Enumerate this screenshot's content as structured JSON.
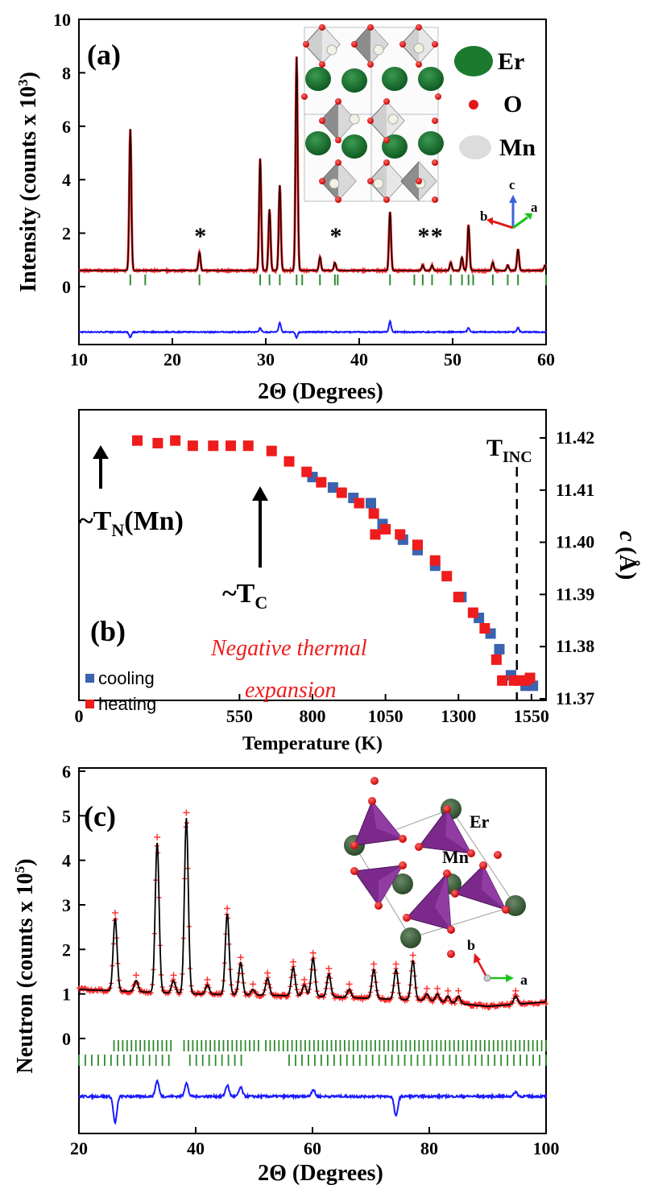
{
  "panels": {
    "a": {
      "tag": "(a)",
      "ylabel": "Intensity (counts x 10",
      "ylabel_sup": "3",
      "ylabel_close": ")",
      "xlabel": "2Θ  (Degrees)",
      "legend": [
        {
          "label": "Er",
          "color": "#1b7a2e"
        },
        {
          "label": "O",
          "color": "#e01818"
        },
        {
          "label": "Mn",
          "color": "#d8d8d8"
        }
      ],
      "impurity_mark": "*",
      "axis_tags": {
        "c": "c",
        "a": "a",
        "b": "b"
      }
    },
    "b": {
      "tag": "(b)",
      "xlabel": "Temperature  (K)",
      "ylabel_c": "c",
      "ylabel_unit": "(Å)",
      "annotations": {
        "tn_prefix": "~T",
        "tn_sub": "N",
        "tn_suffix": "(Mn)",
        "tc_prefix": "~T",
        "tc_sub": "C",
        "tinc_main": "T",
        "tinc_sub": "INC",
        "nte_line1": "Negative thermal",
        "nte_line2": "expansion"
      },
      "legend": [
        {
          "label": "cooling",
          "color": "#3a63b0"
        },
        {
          "label": "heating",
          "color": "#ee1c1c"
        }
      ]
    },
    "c": {
      "tag": "(c)",
      "ylabel": "Neutron (counts x 10",
      "ylabel_sup": "5",
      "ylabel_close": ")",
      "xlabel": "2Θ  (Degrees)",
      "structure_labels": {
        "er": "Er",
        "mn": "Mn",
        "b": "b",
        "a": "a"
      }
    }
  },
  "colors": {
    "observed": "#ff2a2a",
    "calculated": "#000000",
    "difference": "#1a1aff",
    "bragg": "#2e8b2e",
    "cooling": "#3a63b0",
    "heating": "#ee1c1c"
  },
  "chart_data": [
    {
      "type": "line",
      "panel": "a",
      "title": "",
      "xlabel": "2Θ  (Degrees)",
      "ylabel": "Intensity (counts x 10^3)",
      "xlim": [
        10,
        60
      ],
      "ylim": [
        -2.1,
        10
      ],
      "x_ticks": [
        10,
        20,
        30,
        40,
        50,
        60
      ],
      "y_ticks": [
        0,
        2,
        4,
        6,
        8,
        10
      ],
      "background": 0.6,
      "difference_offset": -1.7,
      "peaks": [
        {
          "x": 15.5,
          "y": 5.9
        },
        {
          "x": 22.9,
          "y": 1.3
        },
        {
          "x": 29.4,
          "y": 4.8
        },
        {
          "x": 30.4,
          "y": 2.9
        },
        {
          "x": 31.5,
          "y": 3.8
        },
        {
          "x": 33.3,
          "y": 8.6
        },
        {
          "x": 35.8,
          "y": 1.1
        },
        {
          "x": 37.4,
          "y": 0.9
        },
        {
          "x": 43.3,
          "y": 2.8
        },
        {
          "x": 46.8,
          "y": 0.8
        },
        {
          "x": 47.8,
          "y": 0.8
        },
        {
          "x": 49.8,
          "y": 0.9
        },
        {
          "x": 51.0,
          "y": 1.1
        },
        {
          "x": 51.7,
          "y": 2.3
        },
        {
          "x": 54.3,
          "y": 0.9
        },
        {
          "x": 55.9,
          "y": 0.8
        },
        {
          "x": 57.0,
          "y": 1.4
        },
        {
          "x": 59.9,
          "y": 0.8
        }
      ],
      "difference_features": [
        {
          "x": 15.5,
          "d": -0.2
        },
        {
          "x": 29.4,
          "d": 0.15
        },
        {
          "x": 31.5,
          "d": 0.35
        },
        {
          "x": 33.3,
          "d": -0.2
        },
        {
          "x": 43.3,
          "d": 0.4
        },
        {
          "x": 51.7,
          "d": 0.15
        },
        {
          "x": 57.0,
          "d": 0.15
        }
      ],
      "bragg_positions": [
        15.5,
        17.1,
        22.9,
        29.4,
        30.4,
        31.5,
        33.3,
        33.9,
        35.8,
        37.4,
        37.7,
        43.3,
        45.9,
        46.8,
        47.8,
        49.8,
        51.0,
        51.7,
        52.2,
        54.3,
        55.9,
        57.0,
        60.0
      ],
      "impurity_x": [
        23.0,
        37.5,
        46.9,
        48.3
      ],
      "series": [
        {
          "name": "",
          "role": "observed"
        },
        {
          "name": "",
          "role": "calculated"
        },
        {
          "name": "",
          "role": "difference"
        }
      ]
    },
    {
      "type": "scatter",
      "panel": "b",
      "xlabel": "Temperature  (K)",
      "ylabel": "c (Å)",
      "xlim": [
        0,
        1600
      ],
      "ylim": [
        11.37,
        11.425
      ],
      "x_ticks": [
        0,
        550,
        800,
        1050,
        1300,
        1550
      ],
      "y_ticks": [
        11.37,
        11.38,
        11.39,
        11.4,
        11.41,
        11.42
      ],
      "legend": "bottom-left",
      "tinc_x": 1500,
      "series": [
        {
          "name": "cooling",
          "x": [
            800,
            870,
            940,
            1000,
            1040,
            1110,
            1160,
            1220,
            1310,
            1370,
            1410,
            1440,
            1480,
            1530,
            1555
          ],
          "y": [
            11.4125,
            11.4105,
            11.4085,
            11.4075,
            11.4035,
            11.4005,
            11.3985,
            11.3955,
            11.3895,
            11.3855,
            11.3825,
            11.3795,
            11.3745,
            11.3725,
            11.3725
          ]
        },
        {
          "name": "heating",
          "x": [
            200,
            270,
            330,
            390,
            460,
            520,
            580,
            660,
            720,
            780,
            830,
            900,
            960,
            1010,
            1015,
            1050,
            1100,
            1160,
            1220,
            1260,
            1300,
            1350,
            1390,
            1430,
            1450,
            1490,
            1510,
            1530,
            1545
          ],
          "y": [
            11.4195,
            11.419,
            11.4195,
            11.4185,
            11.4185,
            11.4185,
            11.4185,
            11.4175,
            11.4155,
            11.4135,
            11.4115,
            11.4095,
            11.4075,
            11.4055,
            11.4015,
            11.4025,
            11.4015,
            11.3995,
            11.3965,
            11.3935,
            11.3895,
            11.3865,
            11.3835,
            11.3775,
            11.3735,
            11.3735,
            11.3735,
            11.3735,
            11.374
          ]
        }
      ]
    },
    {
      "type": "line",
      "panel": "c",
      "xlabel": "2Θ  (Degrees)",
      "ylabel": "Neutron (counts x 10^5)",
      "xlim": [
        20,
        100
      ],
      "ylim": [
        -2.1,
        6
      ],
      "x_ticks": [
        20,
        40,
        60,
        80,
        100
      ],
      "y_ticks": [
        0,
        1,
        2,
        3,
        4,
        5,
        6
      ],
      "difference_offset": -1.3,
      "background": [
        [
          20,
          1.1
        ],
        [
          40,
          1.0
        ],
        [
          60,
          0.95
        ],
        [
          80,
          0.85
        ],
        [
          90,
          0.72
        ],
        [
          100,
          0.82
        ]
      ],
      "peaks": [
        {
          "x": 26.2,
          "y": 2.7
        },
        {
          "x": 29.8,
          "y": 1.3
        },
        {
          "x": 33.4,
          "y": 4.4
        },
        {
          "x": 36.2,
          "y": 1.3
        },
        {
          "x": 38.4,
          "y": 4.95
        },
        {
          "x": 42.0,
          "y": 1.2
        },
        {
          "x": 45.4,
          "y": 2.8
        },
        {
          "x": 47.7,
          "y": 1.7
        },
        {
          "x": 49.8,
          "y": 1.1
        },
        {
          "x": 52.3,
          "y": 1.35
        },
        {
          "x": 56.7,
          "y": 1.6
        },
        {
          "x": 58.6,
          "y": 1.2
        },
        {
          "x": 60.1,
          "y": 1.8
        },
        {
          "x": 62.8,
          "y": 1.45
        },
        {
          "x": 66.3,
          "y": 1.1
        },
        {
          "x": 70.5,
          "y": 1.55
        },
        {
          "x": 74.3,
          "y": 1.55
        },
        {
          "x": 77.2,
          "y": 1.75
        },
        {
          "x": 79.6,
          "y": 1.0
        },
        {
          "x": 81.4,
          "y": 1.0
        },
        {
          "x": 83.2,
          "y": 0.95
        },
        {
          "x": 85.0,
          "y": 0.95
        },
        {
          "x": 94.8,
          "y": 0.95
        }
      ],
      "difference_features": [
        {
          "x": 26.2,
          "d": -0.6
        },
        {
          "x": 33.4,
          "d": 0.35
        },
        {
          "x": 38.4,
          "d": 0.3
        },
        {
          "x": 45.4,
          "d": 0.25
        },
        {
          "x": 47.7,
          "d": 0.2
        },
        {
          "x": 60.1,
          "d": 0.15
        },
        {
          "x": 74.3,
          "d": -0.45
        },
        {
          "x": 94.8,
          "d": 0.1
        }
      ],
      "bragg_row1_ranges": [
        [
          26,
          36
        ],
        [
          38,
          51
        ],
        [
          52,
          100
        ]
      ],
      "bragg_row2_ranges": [
        [
          20,
          36
        ],
        [
          39,
          48
        ],
        [
          56,
          100
        ]
      ],
      "series": [
        {
          "name": "",
          "role": "observed"
        },
        {
          "name": "",
          "role": "calculated"
        },
        {
          "name": "",
          "role": "difference"
        }
      ]
    }
  ]
}
